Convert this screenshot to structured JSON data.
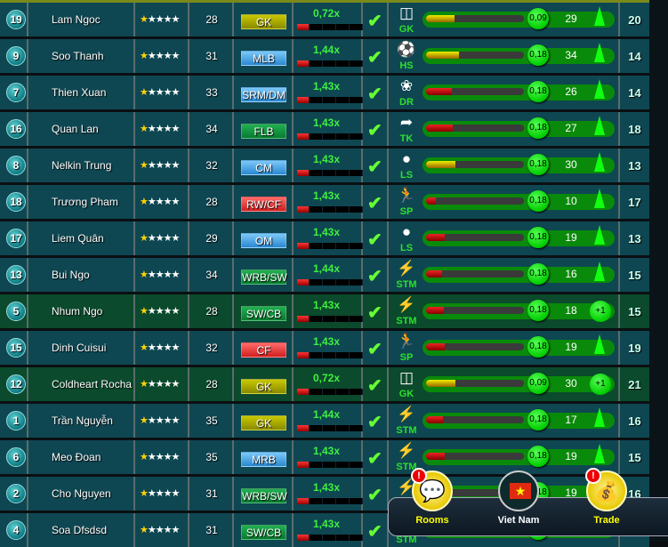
{
  "colors": {
    "row": "#0e4752",
    "row_highlight": "#0b4a2c",
    "pos_GK": "#a8a800",
    "pos_blue": "#3f9fdf",
    "pos_green": "#14a040",
    "pos_red": "#e84040"
  },
  "players": [
    {
      "num": "19",
      "name": "Lam Ngoc",
      "stars": 1,
      "age": "28",
      "pos": "GK",
      "pos_color": "olive",
      "mult": "0,72x",
      "skill_icon": "goal-icon",
      "skill": "GK",
      "level": 29,
      "bar": "yellow",
      "rate": "0,09",
      "value": "29",
      "action": "up",
      "final": "20",
      "hl": false
    },
    {
      "num": "9",
      "name": "Soo Thanh",
      "stars": 1,
      "age": "31",
      "pos": "MLB",
      "pos_color": "blue",
      "mult": "1,44x",
      "skill_icon": "header-icon",
      "skill": "HS",
      "level": 34,
      "bar": "yellow",
      "rate": "0,18",
      "value": "34",
      "action": "up",
      "final": "14",
      "hl": false
    },
    {
      "num": "7",
      "name": "Thien Xuan",
      "stars": 1,
      "age": "33",
      "pos": "SRM/DM",
      "pos_color": "blue",
      "mult": "1,43x",
      "skill_icon": "dribble-icon",
      "skill": "DR",
      "level": 26,
      "bar": "red",
      "rate": "0,18",
      "value": "26",
      "action": "up",
      "final": "14",
      "hl": false
    },
    {
      "num": "16",
      "name": "Quan Lan",
      "stars": 1,
      "age": "34",
      "pos": "FLB",
      "pos_color": "green",
      "mult": "1,43x",
      "skill_icon": "tackle-icon",
      "skill": "TK",
      "level": 27,
      "bar": "red",
      "rate": "0,18",
      "value": "27",
      "action": "up",
      "final": "18",
      "hl": false
    },
    {
      "num": "8",
      "name": "Nelkin Trung",
      "stars": 1,
      "age": "32",
      "pos": "CM",
      "pos_color": "blue",
      "mult": "1,43x",
      "skill_icon": "long-shot-icon",
      "skill": "LS",
      "level": 30,
      "bar": "yellow",
      "rate": "0,18",
      "value": "30",
      "action": "up",
      "final": "13",
      "hl": false
    },
    {
      "num": "18",
      "name": "Trương Pham",
      "stars": 1,
      "age": "28",
      "pos": "RW/CF",
      "pos_color": "red",
      "mult": "1,43x",
      "skill_icon": "sprint-icon",
      "skill": "SP",
      "level": 10,
      "bar": "red",
      "rate": "0,18",
      "value": "10",
      "action": "up",
      "final": "17",
      "hl": false
    },
    {
      "num": "17",
      "name": "Liem Quân",
      "stars": 1,
      "age": "29",
      "pos": "OM",
      "pos_color": "blue",
      "mult": "1,43x",
      "skill_icon": "long-shot-icon",
      "skill": "LS",
      "level": 19,
      "bar": "red",
      "rate": "0,18",
      "value": "19",
      "action": "up",
      "final": "13",
      "hl": false
    },
    {
      "num": "13",
      "name": "Bui Ngo",
      "stars": 1,
      "age": "34",
      "pos": "WRB/SW",
      "pos_color": "green",
      "mult": "1,44x",
      "skill_icon": "stamina-icon",
      "skill": "STM",
      "level": 16,
      "bar": "red",
      "rate": "0,18",
      "value": "16",
      "action": "up",
      "final": "15",
      "hl": false
    },
    {
      "num": "5",
      "name": "Nhum Ngo",
      "stars": 1,
      "age": "28",
      "pos": "SW/CB",
      "pos_color": "green",
      "mult": "1,43x",
      "skill_icon": "stamina-icon",
      "skill": "STM",
      "level": 18,
      "bar": "red",
      "rate": "0,18",
      "value": "18",
      "action": "+1",
      "final": "15",
      "hl": true
    },
    {
      "num": "15",
      "name": "Dinh Cuisui",
      "stars": 1,
      "age": "32",
      "pos": "CF",
      "pos_color": "red",
      "mult": "1,43x",
      "skill_icon": "sprint-icon",
      "skill": "SP",
      "level": 19,
      "bar": "red",
      "rate": "0,18",
      "value": "19",
      "action": "up",
      "final": "19",
      "hl": false
    },
    {
      "num": "12",
      "name": "Coldheart Rocha",
      "stars": 1,
      "age": "28",
      "pos": "GK",
      "pos_color": "olive",
      "mult": "0,72x",
      "skill_icon": "goal-icon",
      "skill": "GK",
      "level": 30,
      "bar": "yellow",
      "rate": "0,09",
      "value": "30",
      "action": "+1",
      "final": "21",
      "hl": true
    },
    {
      "num": "1",
      "name": "Trần Nguyễn",
      "stars": 1,
      "age": "35",
      "pos": "GK",
      "pos_color": "olive",
      "mult": "1,44x",
      "skill_icon": "stamina-icon",
      "skill": "STM",
      "level": 17,
      "bar": "red",
      "rate": "0,18",
      "value": "17",
      "action": "up",
      "final": "16",
      "hl": false
    },
    {
      "num": "6",
      "name": "Meo Đoan",
      "stars": 1,
      "age": "35",
      "pos": "MRB",
      "pos_color": "blue",
      "mult": "1,43x",
      "skill_icon": "stamina-icon",
      "skill": "STM",
      "level": 19,
      "bar": "red",
      "rate": "0,18",
      "value": "19",
      "action": "up",
      "final": "15",
      "hl": false
    },
    {
      "num": "2",
      "name": "Cho Nguyen",
      "stars": 1,
      "age": "31",
      "pos": "WRB/SW",
      "pos_color": "green",
      "mult": "1,43x",
      "skill_icon": "stamina-icon",
      "skill": "STM",
      "level": 19,
      "bar": "red",
      "rate": "0,18",
      "value": "19",
      "action": "up",
      "final": "16",
      "hl": false
    },
    {
      "num": "4",
      "name": "Soa Dfsdsd",
      "stars": 1,
      "age": "31",
      "pos": "SW/CB",
      "pos_color": "green",
      "mult": "1,43x",
      "skill_icon": "stamina-icon",
      "skill": "STM",
      "level": 19,
      "bar": "red",
      "rate": "",
      "value": "",
      "action": "up",
      "final": "",
      "hl": false
    }
  ],
  "bottom": {
    "rooms": "Rooms",
    "country": "Viet Nam",
    "trade": "Trade",
    "alert": "!"
  }
}
